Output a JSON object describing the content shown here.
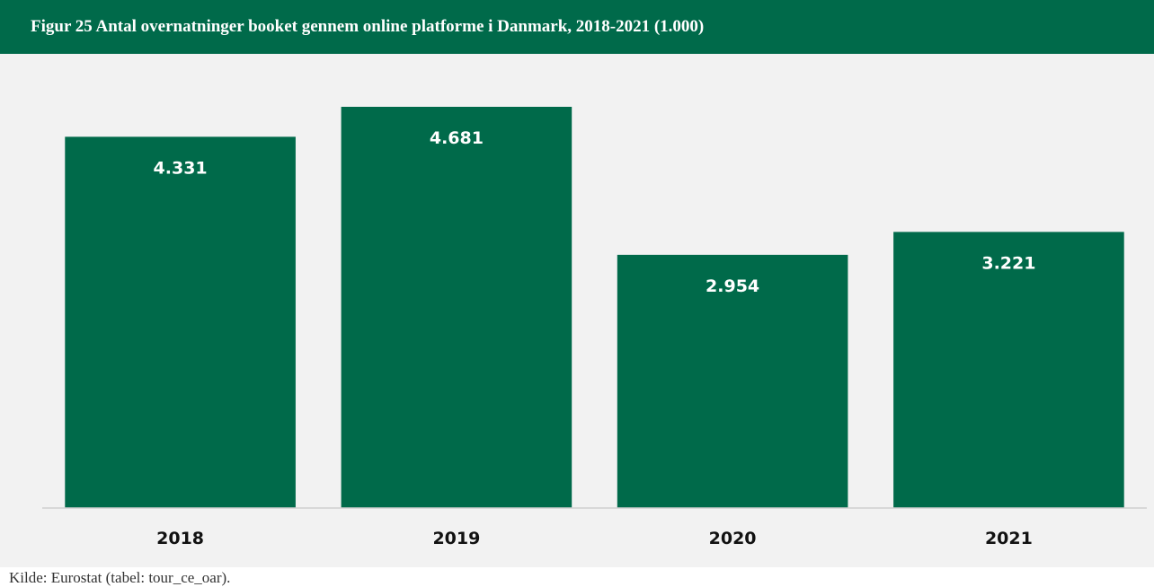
{
  "title": "Figur 25 Antal overnatninger booket gennem online platforme i Danmark, 2018-2021 (1.000)",
  "source": "Kilde: Eurostat (tabel: tour_ce_oar).",
  "colors": {
    "bar": "#006a4a",
    "title_bar": "#006a4a",
    "background": "#f2f2f2"
  },
  "chart_data": {
    "type": "bar",
    "title": "Figur 25 Antal overnatninger booket gennem online platforme i Danmark, 2018-2021 (1.000)",
    "categories": [
      "2018",
      "2019",
      "2020",
      "2021"
    ],
    "values": [
      4331,
      4681,
      2954,
      3221
    ],
    "value_labels": [
      "4.331",
      "4.681",
      "2.954",
      "3.221"
    ],
    "xlabel": "",
    "ylabel": "",
    "ylim": [
      0,
      5000
    ],
    "grid": false,
    "legend": "none"
  }
}
